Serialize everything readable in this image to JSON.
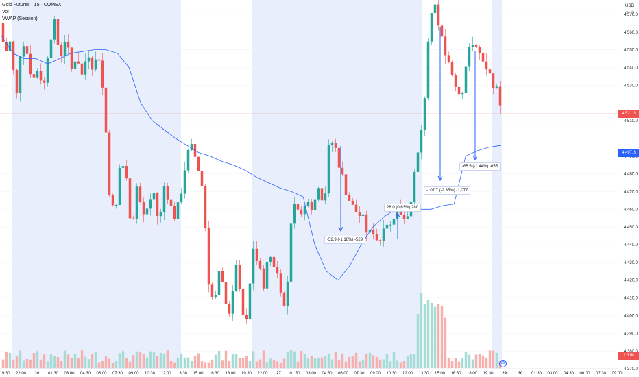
{
  "legend": {
    "title": "Gold Futures · 15 · COMEX",
    "line2": "Vol",
    "line3": "VWAP (Session)"
  },
  "currency": "USD",
  "currency_sub": "ф=ф",
  "current_price": "4,521.3",
  "vwap_price": "4,497.3",
  "volume_value": "1.31K",
  "settings_label": "29",
  "price_axis": [
    "4,570.0",
    "4,560.0",
    "4,550.0",
    "4,540.0",
    "4,530.0",
    "4,510.0",
    "4,490.0",
    "4,480.0",
    "4,470.0",
    "4,460.0",
    "4,450.0",
    "4,440.0",
    "4,430.0",
    "4,420.0",
    "4,410.0",
    "4,400.0",
    "4,390.0",
    "4,380.0",
    "4,370.0"
  ],
  "time_axis": [
    "19:30",
    "22:00",
    "26",
    "01:30",
    "03:00",
    "04:30",
    "06:00",
    "07:30",
    "09:00",
    "10:30",
    "12:00",
    "13:30",
    "15:00",
    "16:30",
    "18:00",
    "19:30",
    "22:00",
    "27",
    "01:30",
    "03:00",
    "04:30",
    "06:00",
    "07:30",
    "09:00",
    "10:30",
    "12:00",
    "13:30",
    "15:00",
    "16:30",
    "18:00",
    "19:30",
    "29",
    "30",
    "01:30",
    "03:00",
    "04:30",
    "06:00",
    "07:30",
    "09:00"
  ],
  "annotations": [
    {
      "text": "-52.9 (-1.18%) -529"
    },
    {
      "text": "28.0 (0.63%) 280"
    },
    {
      "text": "-107.7 (-2.35%) -1,077"
    },
    {
      "text": "-65.5 (-1.44%) -655"
    }
  ],
  "colors": {
    "up": "#26a69a",
    "down": "#ef5350",
    "vwap": "#2962ff",
    "session_bg": "#e8eefc",
    "price_line": "#ef5350"
  },
  "chart_data": {
    "type": "candlestick",
    "title": "Gold Futures · 15 · COMEX",
    "ylim": [
      4370,
      4575
    ],
    "series": [
      {
        "name": "Vol"
      },
      {
        "name": "VWAP (Session)"
      }
    ],
    "price_path": [
      4565,
      4548,
      4555,
      4520,
      4558,
      4548,
      4532,
      4540,
      4528,
      4555,
      4565,
      4545,
      4558,
      4538,
      4548,
      4535,
      4550,
      4540,
      4548,
      4520,
      4468,
      4455,
      4490,
      4478,
      4448,
      4475,
      4455,
      4462,
      4470,
      4450,
      4475,
      4462,
      4455,
      4470,
      4490,
      4495,
      4485,
      4470,
      4420,
      4405,
      4425,
      4410,
      4400,
      4430,
      4402,
      4395,
      4440,
      4428,
      4418,
      4435,
      4428,
      4418,
      4400,
      4455,
      4465,
      4455,
      4468,
      4460,
      4475,
      4462,
      4500,
      4495,
      4482,
      4470,
      4462,
      4458,
      4455,
      4445,
      4448,
      4440,
      4455,
      4450,
      4460,
      4458,
      4455,
      4470,
      4490,
      4510,
      4560,
      4575,
      4560,
      4550,
      4540,
      4530,
      4525,
      4545,
      4555,
      4550,
      4540,
      4535,
      4530,
      4520
    ],
    "vwap_path": [
      4558,
      4548,
      4545,
      4545,
      4542,
      4545,
      4548,
      4549,
      4550,
      4550,
      4548,
      4540,
      4520,
      4510,
      4505,
      4500,
      4496,
      4492,
      4490,
      4487,
      4485,
      4482,
      4478,
      4475,
      4472,
      4470,
      4467,
      4440,
      4425,
      4420,
      4428,
      4440,
      4450,
      4456,
      4460,
      4462,
      4460,
      4460,
      4462,
      4463,
      4490,
      4493,
      4495,
      4496
    ],
    "measurements": [
      {
        "label": "-52.9 (-1.18%) -529",
        "change": -52.9,
        "percent": -1.18
      },
      {
        "label": "28.0 (0.63%) 280",
        "change": 28.0,
        "percent": 0.63
      },
      {
        "label": "-107.7 (-2.35%) -1,077",
        "change": -107.7,
        "percent": -2.35
      },
      {
        "label": "-65.5 (-1.44%) -655",
        "change": -65.5,
        "percent": -1.44
      }
    ],
    "last_price": 4521.3,
    "vwap_last": 4497.3,
    "volume_last": "1.31K"
  }
}
